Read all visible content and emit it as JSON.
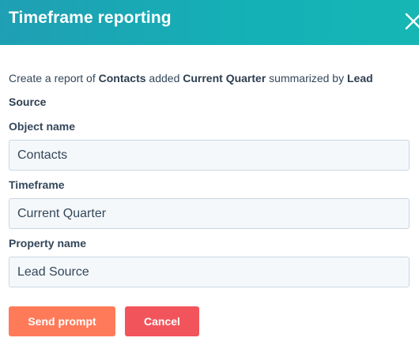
{
  "dialog": {
    "title": "Timeframe reporting",
    "close_icon": "close-icon"
  },
  "description": {
    "prefix": "Create a report of ",
    "object": "Contacts",
    "middle": " added ",
    "timeframe": "Current Quarter",
    "suffix": " summarized by ",
    "property": "Lead Source"
  },
  "fields": {
    "object_name": {
      "label": "Object name",
      "value": "Contacts"
    },
    "timeframe": {
      "label": "Timeframe",
      "value": "Current Quarter"
    },
    "property_name": {
      "label": "Property name",
      "value": "Lead Source"
    }
  },
  "buttons": {
    "send_label": "Send prompt",
    "cancel_label": "Cancel"
  },
  "colors": {
    "header": "#14b1b6",
    "send": "#ff7a59",
    "cancel": "#f2545b"
  }
}
